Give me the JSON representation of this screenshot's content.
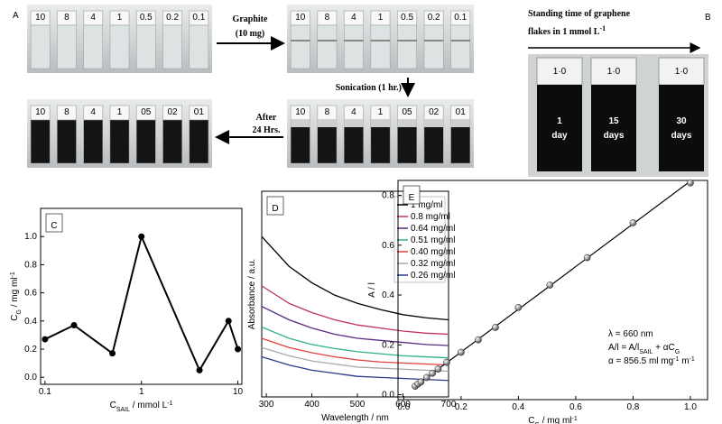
{
  "photos": {
    "panel_label": "A",
    "rows": [
      {
        "labels": [
          "10",
          "8",
          "4",
          "1",
          "0.5",
          "0.2",
          "0.1"
        ]
      },
      {
        "labels": [
          "10",
          "8",
          "4",
          "1",
          "0.5",
          "0.2",
          "0.1"
        ]
      },
      {
        "labels": [
          "10",
          "8",
          "4",
          "1",
          "05",
          "02",
          "01"
        ]
      },
      {
        "labels": [
          "10",
          "8",
          "4",
          "1",
          "05",
          "02",
          "01"
        ]
      }
    ]
  },
  "steps": [
    "Graphite",
    "(10 mg)",
    "Sonication (1 hr.)",
    "After",
    "24 Hrs."
  ],
  "standing": {
    "panel_label": "B",
    "title_lines": [
      "Standing time of graphene",
      "flakes in 1 mmol L"
    ],
    "title_sup": "-1",
    "vials": [
      {
        "cap": "1·0",
        "label_lines": [
          "1",
          "day"
        ]
      },
      {
        "cap": "1·0",
        "label_lines": [
          "15",
          "days"
        ]
      },
      {
        "cap": "1·0",
        "label_lines": [
          "30",
          "days"
        ]
      }
    ]
  },
  "chart_data": [
    {
      "type": "line",
      "panel_label": "C",
      "xlabel": [
        {
          "text": "C"
        },
        {
          "text": "SAIL",
          "sub": true
        },
        {
          "text": " / mmol L"
        },
        {
          "text": "-1",
          "sup": true
        }
      ],
      "ylabel": [
        {
          "text": "C"
        },
        {
          "text": "G",
          "sub": true
        },
        {
          "text": " / mg ml"
        },
        {
          "text": "-1",
          "sup": true
        }
      ],
      "x": [
        0.1,
        0.2,
        0.5,
        1,
        4,
        8,
        10
      ],
      "values": [
        0.27,
        0.37,
        0.17,
        1.0,
        0.05,
        0.4,
        0.2
      ],
      "color": "#000000",
      "markers": true,
      "log_x": true,
      "xlim": [
        0.09,
        11
      ],
      "xticks": [
        0.1,
        1,
        10
      ],
      "ylim": [
        -0.05,
        1.2
      ],
      "yticks": [
        {
          "value": 0,
          "label": "0.0"
        },
        {
          "value": 0.2,
          "label": "0.2"
        },
        {
          "value": 0.4,
          "label": "0.4"
        },
        {
          "value": 0.6,
          "label": "0.6"
        },
        {
          "value": 0.8,
          "label": "0.8"
        },
        {
          "value": 1,
          "label": "1.0"
        }
      ]
    },
    {
      "type": "line",
      "panel_label": "D",
      "xlabel": [
        {
          "text": "Wavelength / nm"
        }
      ],
      "ylabel": [
        {
          "text": "Absorbance / a.u."
        }
      ],
      "x": [
        290,
        350,
        400,
        450,
        500,
        550,
        600,
        650,
        700
      ],
      "series": [
        {
          "name": "1 mg/ml",
          "color": "#000000",
          "values": [
            1.56,
            1.27,
            1.11,
            0.99,
            0.91,
            0.85,
            0.8,
            0.77,
            0.75
          ]
        },
        {
          "name": "0.8 mg/ml",
          "color": "#c0306a",
          "values": [
            1.08,
            0.91,
            0.82,
            0.75,
            0.7,
            0.67,
            0.64,
            0.62,
            0.61
          ]
        },
        {
          "name": "0.64 mg/ml",
          "color": "#5a2a82",
          "values": [
            0.88,
            0.75,
            0.67,
            0.61,
            0.57,
            0.55,
            0.53,
            0.51,
            0.5
          ]
        },
        {
          "name": "0.51 mg/ml",
          "color": "#2fb28a",
          "values": [
            0.68,
            0.57,
            0.51,
            0.47,
            0.44,
            0.42,
            0.4,
            0.39,
            0.38
          ]
        },
        {
          "name": "0.40 mg/ml",
          "color": "#e0403a",
          "values": [
            0.57,
            0.48,
            0.43,
            0.39,
            0.36,
            0.34,
            0.33,
            0.32,
            0.31
          ]
        },
        {
          "name": "0.32 mg/ml",
          "color": "#a8a8a8",
          "values": [
            0.48,
            0.4,
            0.35,
            0.32,
            0.29,
            0.28,
            0.27,
            0.26,
            0.25
          ]
        },
        {
          "name": "0.26 mg/ml",
          "color": "#2a3a8a",
          "values": [
            0.39,
            0.31,
            0.26,
            0.23,
            0.2,
            0.19,
            0.18,
            0.17,
            0.16
          ]
        }
      ],
      "legend": "upper right",
      "xlim": [
        290,
        700
      ],
      "xticks": [
        300,
        400,
        500,
        600,
        700
      ],
      "ylim": [
        0,
        2
      ]
    },
    {
      "type": "scatter",
      "panel_label": "E",
      "xlabel": [
        {
          "text": "C"
        },
        {
          "text": "G",
          "sub": true
        },
        {
          "text": " / mg ml"
        },
        {
          "text": "-1",
          "sup": true
        }
      ],
      "ylabel": [
        {
          "text": "A / l"
        }
      ],
      "x": [
        0.04,
        0.05,
        0.06,
        0.08,
        0.1,
        0.12,
        0.15,
        0.2,
        0.26,
        0.32,
        0.4,
        0.51,
        0.64,
        0.8,
        1.0
      ],
      "values": [
        0.034,
        0.043,
        0.051,
        0.069,
        0.086,
        0.103,
        0.13,
        0.17,
        0.22,
        0.27,
        0.35,
        0.44,
        0.55,
        0.69,
        0.85
      ],
      "fit_line": {
        "x": [
          0.04,
          1.0
        ],
        "y": [
          0.034,
          0.857
        ]
      },
      "annotations": [
        [
          {
            "text": "λ = 660 nm"
          }
        ],
        [
          {
            "text": "A/l = A/l"
          },
          {
            "text": "SAIL",
            "sub": true
          },
          {
            "text": " + αC"
          },
          {
            "text": "G",
            "sub": true
          }
        ],
        [
          {
            "text": "α = 856.5 ml mg"
          },
          {
            "text": "-1",
            "sup": true
          },
          {
            "text": " m"
          },
          {
            "text": "-1",
            "sup": true
          }
        ]
      ],
      "xlim": [
        -0.02,
        1.06
      ],
      "xticks": [
        {
          "value": 0,
          "label": "0.0"
        },
        {
          "value": 0.2,
          "label": "0.2"
        },
        {
          "value": 0.4,
          "label": "0.4"
        },
        {
          "value": 0.6,
          "label": "0.6"
        },
        {
          "value": 0.8,
          "label": "0.8"
        },
        {
          "value": 1,
          "label": "1.0"
        }
      ],
      "ylim": [
        -0.02,
        0.86
      ],
      "yticks": [
        {
          "value": 0,
          "label": "0.0"
        },
        {
          "value": 0.2,
          "label": "0.2"
        },
        {
          "value": 0.4,
          "label": "0.4"
        },
        {
          "value": 0.6,
          "label": "0.6"
        },
        {
          "value": 0.8,
          "label": "0.8"
        }
      ]
    }
  ]
}
